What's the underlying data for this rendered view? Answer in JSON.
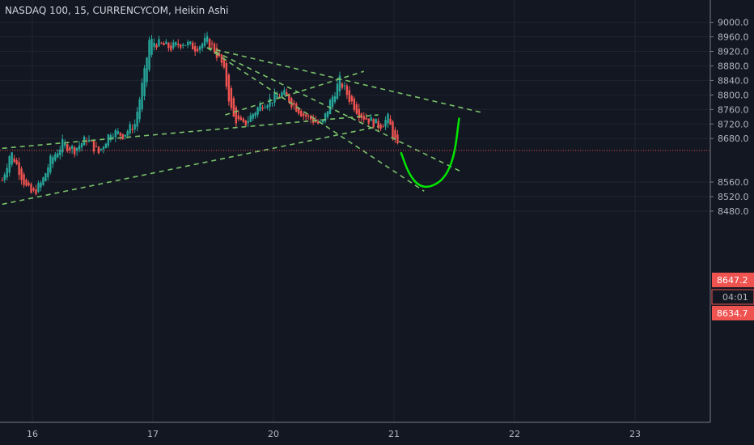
{
  "header": {
    "title": "NASDAQ 100, 15, CURRENCYCOM, Heikin Ashi"
  },
  "price_axis": {
    "labels": [
      "9000.0",
      "8960.0",
      "8920.0",
      "8880.0",
      "8840.0",
      "8800.0",
      "8760.0",
      "8720.0",
      "8680.0",
      "8560.0",
      "8520.0",
      "8480.0"
    ]
  },
  "time_axis": {
    "labels": [
      "16",
      "17",
      "20",
      "21",
      "22",
      "23"
    ]
  },
  "badges": {
    "last_price": "8647.2",
    "countdown": "04:01",
    "low_price": "8634.7"
  },
  "colors": {
    "background": "#131722",
    "grid": "#1f2430",
    "up": "#26a69a",
    "down": "#ef5350",
    "trend": "#7ac36a",
    "drawing": "#00e600",
    "price_line": "#ef5350"
  },
  "chart_data": {
    "type": "candlestick",
    "style": "Heikin Ashi",
    "ylim": [
      8460,
      9020
    ],
    "sessions": [
      {
        "date": "16",
        "x_day": 0
      },
      {
        "date": "17",
        "x_day": 1
      },
      {
        "date": "20",
        "x_day": 2
      },
      {
        "date": "21",
        "x_day": 3
      },
      {
        "date": "22",
        "x_day": 4
      },
      {
        "date": "23",
        "x_day": 5
      }
    ],
    "close_path": [
      [
        -0.25,
        8565
      ],
      [
        -0.18,
        8645
      ],
      [
        -0.12,
        8600
      ],
      [
        -0.05,
        8545
      ],
      [
        0.0,
        8525
      ],
      [
        0.08,
        8560
      ],
      [
        0.15,
        8620
      ],
      [
        0.25,
        8665
      ],
      [
        0.35,
        8650
      ],
      [
        0.45,
        8680
      ],
      [
        0.55,
        8640
      ],
      [
        0.65,
        8700
      ],
      [
        0.75,
        8690
      ],
      [
        0.85,
        8720
      ],
      [
        0.93,
        8860
      ],
      [
        0.97,
        8950
      ],
      [
        1.05,
        8940
      ],
      [
        1.15,
        8930
      ],
      [
        1.25,
        8945
      ],
      [
        1.35,
        8930
      ],
      [
        1.45,
        8950
      ],
      [
        1.5,
        8930
      ],
      [
        1.58,
        8880
      ],
      [
        1.66,
        8740
      ],
      [
        1.75,
        8715
      ],
      [
        1.82,
        8745
      ],
      [
        1.9,
        8775
      ],
      [
        2.0,
        8790
      ],
      [
        2.08,
        8805
      ],
      [
        2.16,
        8775
      ],
      [
        2.25,
        8745
      ],
      [
        2.33,
        8730
      ],
      [
        2.4,
        8715
      ],
      [
        2.47,
        8780
      ],
      [
        2.55,
        8840
      ],
      [
        2.63,
        8790
      ],
      [
        2.72,
        8745
      ],
      [
        2.8,
        8730
      ],
      [
        2.88,
        8715
      ],
      [
        2.95,
        8735
      ],
      [
        3.0,
        8680
      ],
      [
        3.04,
        8645
      ]
    ],
    "trendlines": [
      {
        "from": [
          -0.25,
          8653
        ],
        "to": [
          2.87,
          8745
        ]
      },
      {
        "from": [
          -0.25,
          8499
        ],
        "to": [
          2.87,
          8713
        ]
      },
      {
        "from": [
          1.45,
          8930
        ],
        "to": [
          3.75,
          8750
        ]
      },
      {
        "from": [
          1.45,
          8930
        ],
        "to": [
          3.55,
          8590
        ]
      },
      {
        "from": [
          1.45,
          8930
        ],
        "to": [
          3.25,
          8535
        ]
      },
      {
        "from": [
          1.6,
          8745
        ],
        "to": [
          2.75,
          8865
        ]
      }
    ],
    "annotation_curve": [
      [
        3.06,
        8640
      ],
      [
        3.12,
        8585
      ],
      [
        3.2,
        8550
      ],
      [
        3.3,
        8545
      ],
      [
        3.42,
        8570
      ],
      [
        3.5,
        8630
      ],
      [
        3.54,
        8735
      ]
    ],
    "last_price": 8647.2,
    "low_price": 8634.7
  }
}
